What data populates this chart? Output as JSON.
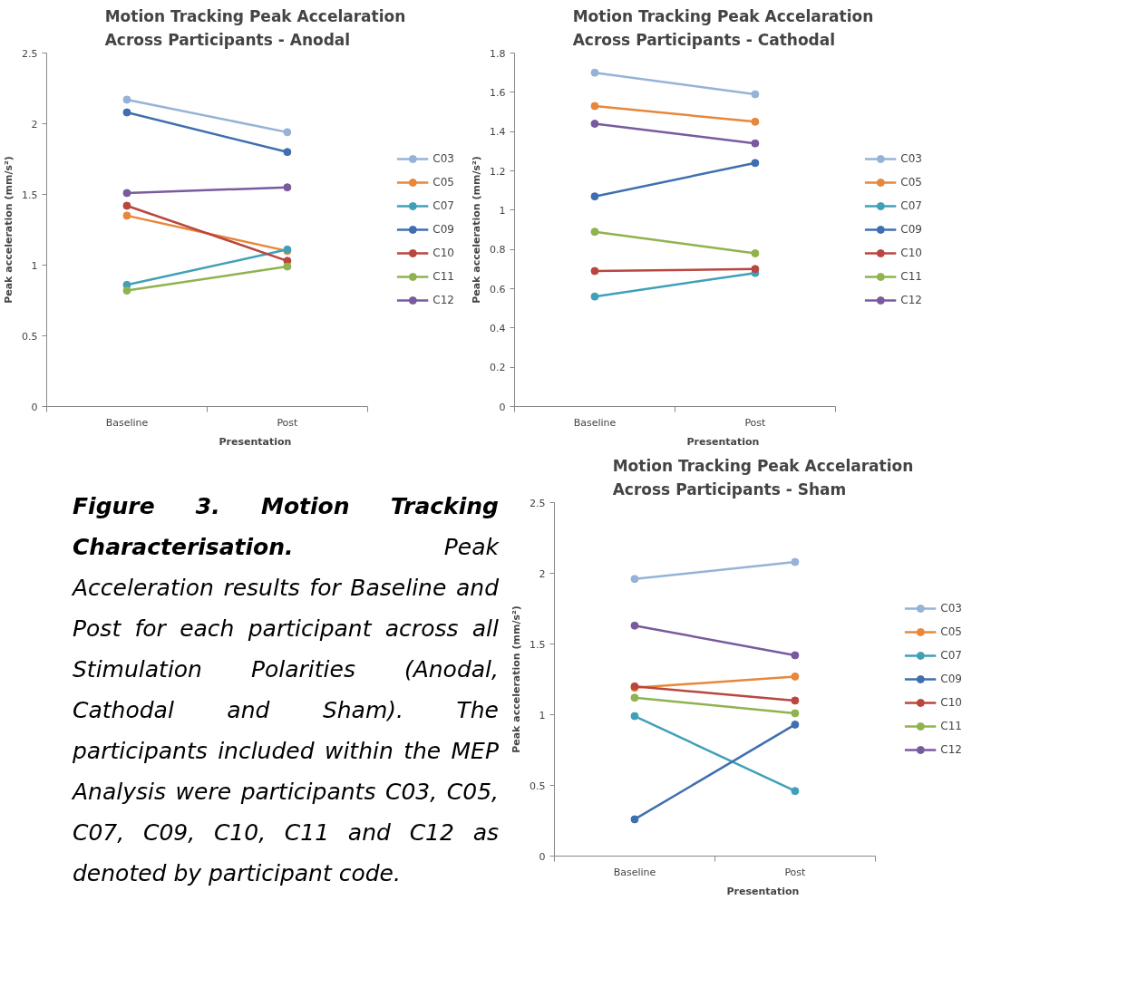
{
  "chart_data": [
    {
      "type": "line",
      "title": "Motion Tracking Peak Accelaration\nAcross Participants - Anodal",
      "xlabel": "Presentation",
      "ylabel": "Peak acceleration (mm/s²)",
      "categories": [
        "Baseline",
        "Post"
      ],
      "ylim": [
        0,
        2.5
      ],
      "yticks": [
        0,
        0.5,
        1,
        1.5,
        2,
        2.5
      ],
      "grid": false,
      "legend": "right",
      "marker": "circle",
      "line_style": "solid",
      "series": [
        {
          "name": "C03",
          "color": "#95b3d7",
          "values": [
            2.17,
            1.94
          ]
        },
        {
          "name": "C05",
          "color": "#e8873a",
          "values": [
            1.35,
            1.1
          ]
        },
        {
          "name": "C07",
          "color": "#40a0b8",
          "values": [
            0.86,
            1.11
          ]
        },
        {
          "name": "C09",
          "color": "#3f6fb0",
          "values": [
            2.08,
            1.8
          ]
        },
        {
          "name": "C10",
          "color": "#b9463f",
          "values": [
            1.42,
            1.03
          ]
        },
        {
          "name": "C11",
          "color": "#8fb34e",
          "values": [
            0.82,
            0.99
          ]
        },
        {
          "name": "C12",
          "color": "#7a5a9e",
          "values": [
            1.51,
            1.55
          ]
        }
      ],
      "annotations": [
        "Figure 3. Motion Tracking Characterisation.",
        "Peak Acceleration results for Baseline and Post for each participant across all Stimulation Polarities (Anodal, Cathodal and Sham). The participants included within the MEP Analysis were participants C03, C05, C07, C09, C10, C11 and C12 as denoted by participant code."
      ]
    },
    {
      "type": "line",
      "title": "Motion Tracking Peak Accelaration\nAcross Participants - Cathodal",
      "xlabel": "Presentation",
      "ylabel": "Peak acceleration (mm/s²)",
      "categories": [
        "Baseline",
        "Post"
      ],
      "ylim": [
        0,
        1.8
      ],
      "yticks": [
        0,
        0.2,
        0.4,
        0.6,
        0.8,
        1,
        1.2,
        1.4,
        1.6,
        1.8
      ],
      "grid": false,
      "legend": "right",
      "marker": "circle",
      "line_style": "solid",
      "series": [
        {
          "name": "C03",
          "color": "#95b3d7",
          "values": [
            1.7,
            1.59
          ]
        },
        {
          "name": "C05",
          "color": "#e8873a",
          "values": [
            1.53,
            1.45
          ]
        },
        {
          "name": "C07",
          "color": "#40a0b8",
          "values": [
            0.56,
            0.68
          ]
        },
        {
          "name": "C09",
          "color": "#3f6fb0",
          "values": [
            1.07,
            1.24
          ]
        },
        {
          "name": "C10",
          "color": "#b9463f",
          "values": [
            0.69,
            0.7
          ]
        },
        {
          "name": "C11",
          "color": "#8fb34e",
          "values": [
            0.89,
            0.78
          ]
        },
        {
          "name": "C12",
          "color": "#7a5a9e",
          "values": [
            1.44,
            1.34
          ]
        }
      ]
    },
    {
      "type": "line",
      "title": "Motion Tracking Peak Accelaration\nAcross Participants - Sham",
      "xlabel": "Presentation",
      "ylabel": "Peak acceleration (mm/s²)",
      "categories": [
        "Baseline",
        "Post"
      ],
      "ylim": [
        0,
        2.5
      ],
      "yticks": [
        0,
        0.5,
        1,
        1.5,
        2,
        2.5
      ],
      "grid": false,
      "legend": "right",
      "marker": "circle",
      "line_style": "solid",
      "series": [
        {
          "name": "C03",
          "color": "#95b3d7",
          "values": [
            1.96,
            2.08
          ]
        },
        {
          "name": "C05",
          "color": "#e8873a",
          "values": [
            1.19,
            1.27
          ]
        },
        {
          "name": "C07",
          "color": "#40a0b8",
          "values": [
            0.99,
            0.46
          ]
        },
        {
          "name": "C09",
          "color": "#3f6fb0",
          "values": [
            0.26,
            0.93
          ]
        },
        {
          "name": "C10",
          "color": "#b9463f",
          "values": [
            1.2,
            1.1
          ]
        },
        {
          "name": "C11",
          "color": "#8fb34e",
          "values": [
            1.12,
            1.01
          ]
        },
        {
          "name": "C12",
          "color": "#7a5a9e",
          "values": [
            1.63,
            1.42
          ]
        }
      ]
    }
  ]
}
